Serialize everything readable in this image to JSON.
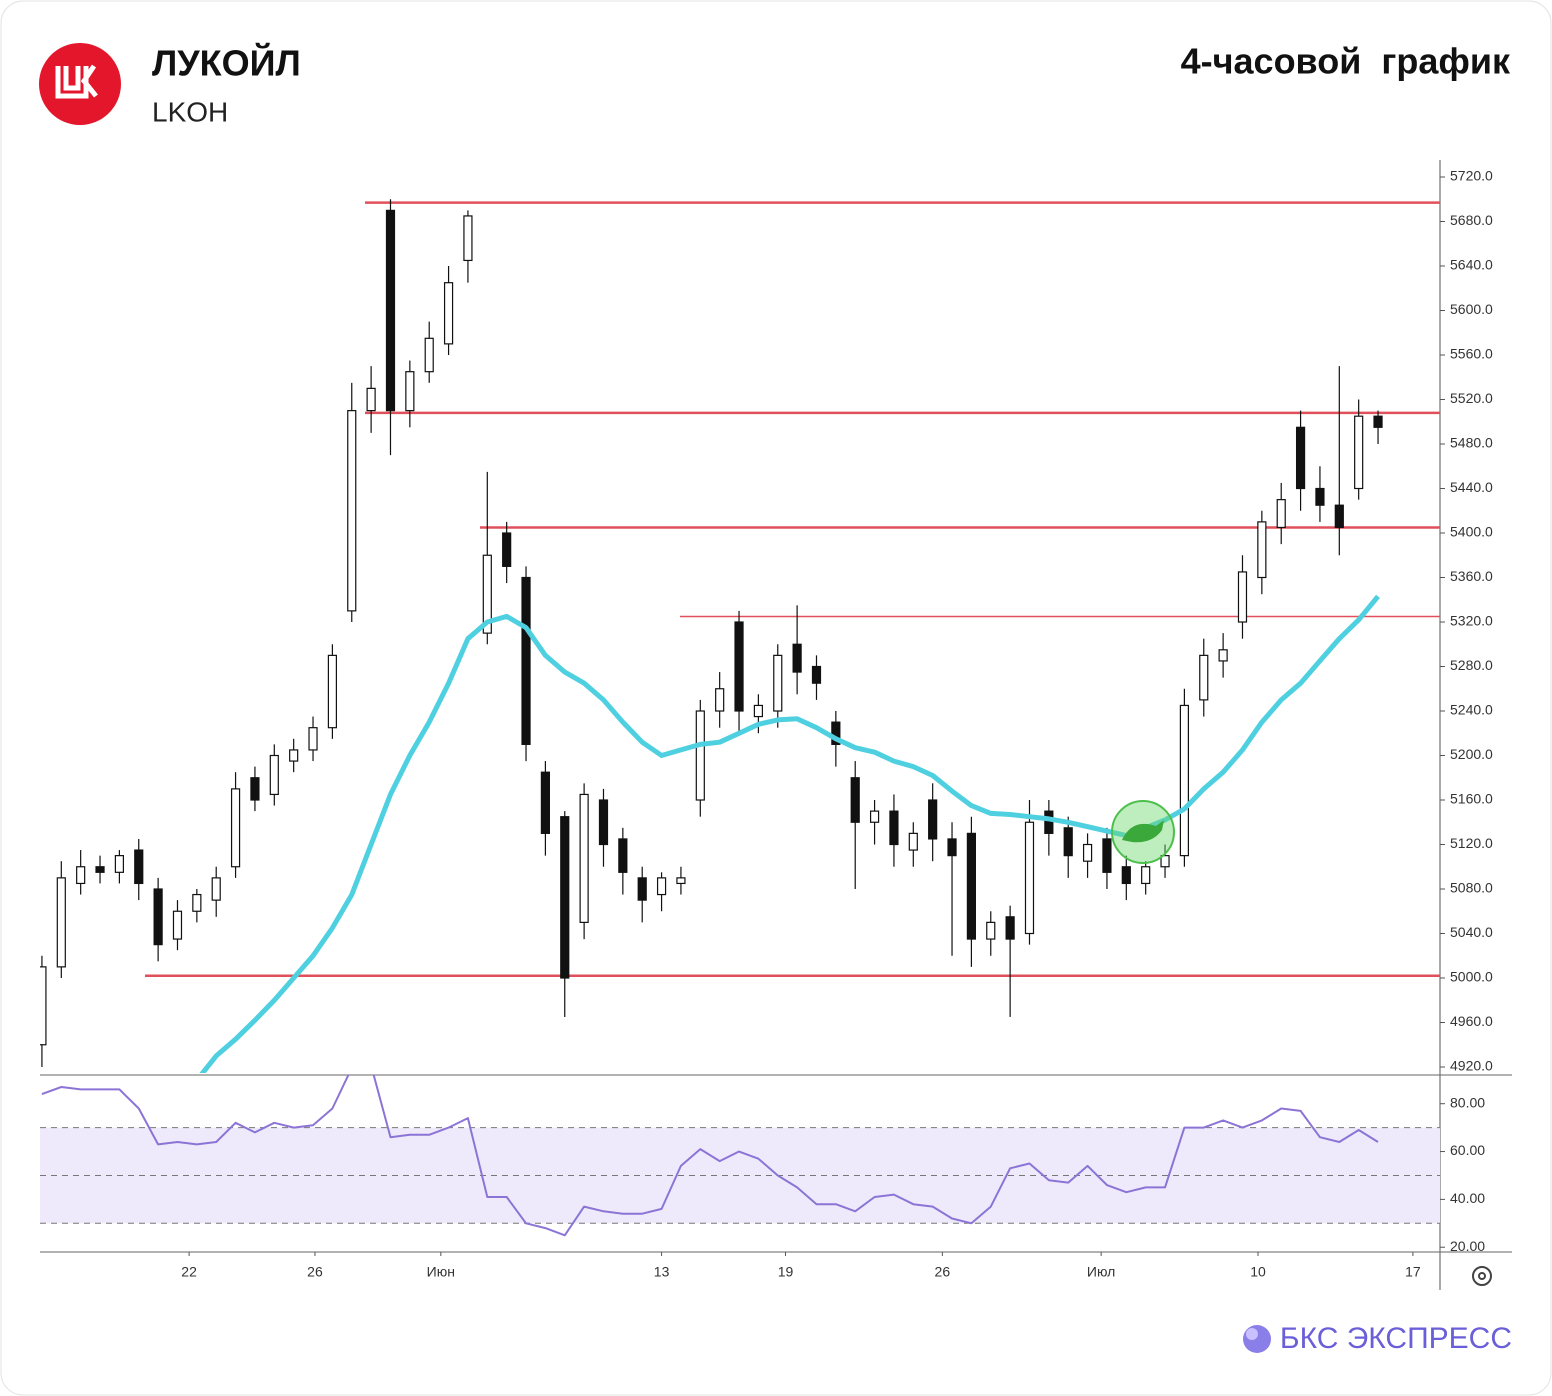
{
  "header": {
    "title": "ЛУКОЙЛ",
    "ticker": "LKOH",
    "timeframe": "4-часовой  график"
  },
  "footer": {
    "brand": "БКС ЭКСПРЕСС"
  },
  "chart_data": {
    "type": "candlestick",
    "open": [
      4940,
      5010,
      5085,
      5100,
      5095,
      5115,
      5080,
      5035,
      5060,
      5070,
      5100,
      5180,
      5165,
      5195,
      5205,
      5225,
      5330,
      5510,
      5690,
      5510,
      5545,
      5570,
      5645,
      5310,
      5400,
      5360,
      5185,
      5145,
      5050,
      5160,
      5125,
      5090,
      5075,
      5085,
      5160,
      5240,
      5320,
      5235,
      5240,
      5300,
      5280,
      5230,
      5180,
      5140,
      5150,
      5115,
      5160,
      5125,
      5130,
      5035,
      5055,
      5040,
      5150,
      5135,
      5105,
      5125,
      5100,
      5085,
      5100,
      5110,
      5250,
      5285,
      5320,
      5360,
      5405,
      5495,
      5440,
      5425,
      5440,
      5505
    ],
    "high": [
      5020,
      5105,
      5115,
      5110,
      5115,
      5125,
      5090,
      5070,
      5080,
      5100,
      5185,
      5190,
      5210,
      5215,
      5235,
      5300,
      5535,
      5550,
      5700,
      5555,
      5590,
      5640,
      5690,
      5455,
      5410,
      5370,
      5195,
      5150,
      5175,
      5170,
      5135,
      5100,
      5095,
      5100,
      5250,
      5275,
      5330,
      5255,
      5300,
      5335,
      5290,
      5240,
      5195,
      5160,
      5165,
      5140,
      5175,
      5140,
      5145,
      5060,
      5065,
      5160,
      5160,
      5145,
      5130,
      5135,
      5110,
      5105,
      5120,
      5260,
      5305,
      5310,
      5380,
      5420,
      5445,
      5510,
      5460,
      5550,
      5520,
      5510
    ],
    "low": [
      4920,
      5000,
      5075,
      5085,
      5085,
      5070,
      5015,
      5025,
      5050,
      5055,
      5090,
      5150,
      5155,
      5185,
      5195,
      5215,
      5320,
      5490,
      5470,
      5495,
      5535,
      5560,
      5625,
      5300,
      5355,
      5195,
      5110,
      4965,
      5035,
      5100,
      5075,
      5050,
      5060,
      5075,
      5145,
      5225,
      5220,
      5220,
      5225,
      5255,
      5250,
      5190,
      5080,
      5120,
      5100,
      5100,
      5105,
      5020,
      5010,
      5020,
      4965,
      5030,
      5110,
      5090,
      5090,
      5080,
      5070,
      5075,
      5090,
      5100,
      5235,
      5270,
      5305,
      5345,
      5390,
      5420,
      5410,
      5380,
      5430,
      5480
    ],
    "close": [
      5010,
      5090,
      5100,
      5095,
      5110,
      5085,
      5030,
      5060,
      5075,
      5090,
      5170,
      5160,
      5200,
      5205,
      5225,
      5290,
      5510,
      5530,
      5510,
      5545,
      5575,
      5625,
      5685,
      5380,
      5370,
      5210,
      5130,
      5000,
      5165,
      5120,
      5095,
      5070,
      5090,
      5090,
      5240,
      5260,
      5240,
      5245,
      5290,
      5275,
      5265,
      5210,
      5140,
      5150,
      5120,
      5130,
      5125,
      5110,
      5035,
      5050,
      5035,
      5140,
      5130,
      5110,
      5120,
      5095,
      5085,
      5100,
      5110,
      5245,
      5290,
      5295,
      5365,
      5410,
      5430,
      5440,
      5425,
      5405,
      5505,
      5495
    ],
    "ma": [
      null,
      null,
      null,
      null,
      null,
      null,
      null,
      null,
      4908,
      4930,
      4945,
      4962,
      4980,
      5000,
      5020,
      5045,
      5075,
      5120,
      5165,
      5200,
      5230,
      5265,
      5305,
      5320,
      5325,
      5315,
      5290,
      5275,
      5265,
      5250,
      5230,
      5212,
      5200,
      5205,
      5210,
      5212,
      5220,
      5228,
      5232,
      5233,
      5225,
      5215,
      5207,
      5203,
      5195,
      5190,
      5182,
      5168,
      5155,
      5148,
      5147,
      5145,
      5143,
      5140,
      5136,
      5132,
      5128,
      5135,
      5142,
      5152,
      5170,
      5185,
      5205,
      5230,
      5250,
      5265,
      5285,
      5305,
      5322,
      5343
    ],
    "ma_color": "#4fd0e0",
    "rsi": [
      84,
      87,
      86,
      86,
      86,
      78,
      63,
      64,
      63,
      64,
      72,
      68,
      72,
      70,
      71,
      78,
      95,
      96,
      66,
      67,
      67,
      70,
      74,
      41,
      41,
      30,
      28,
      25,
      37,
      35,
      34,
      34,
      36,
      54,
      61,
      56,
      60,
      57,
      50,
      45,
      38,
      38,
      35,
      41,
      42,
      38,
      37,
      32,
      30,
      37,
      53,
      55,
      48,
      47,
      54,
      46,
      43,
      45,
      45,
      70,
      70,
      73,
      70,
      73,
      78,
      77,
      66,
      64,
      69,
      64
    ],
    "rsi_color": "#8c74d6",
    "levels": [
      5697,
      5508,
      5405,
      5325,
      5002
    ],
    "level_color": "#e0505a",
    "xlim": [
      -0.1,
      72.2
    ],
    "xticks": [
      {
        "value": 7.6,
        "label": "22"
      },
      {
        "value": 14.1,
        "label": "26"
      },
      {
        "value": 20.6,
        "label": "Июн"
      },
      {
        "value": 32,
        "label": "13"
      },
      {
        "value": 38.4,
        "label": "19"
      },
      {
        "value": 46.5,
        "label": "26"
      },
      {
        "value": 54.7,
        "label": "Июл"
      },
      {
        "value": 62.8,
        "label": "10"
      },
      {
        "value": 70.8,
        "label": "17"
      }
    ],
    "ylim": [
      4920,
      5720
    ],
    "yticks": [
      {
        "value": 5720,
        "label": "5720.0"
      },
      {
        "value": 5680,
        "label": "5680.0"
      },
      {
        "value": 5640,
        "label": "5640.0"
      },
      {
        "value": 5600,
        "label": "5600.0"
      },
      {
        "value": 5560,
        "label": "5560.0"
      },
      {
        "value": 5520,
        "label": "5520.0"
      },
      {
        "value": 5480,
        "label": "5480.0"
      },
      {
        "value": 5440,
        "label": "5440.0"
      },
      {
        "value": 5400,
        "label": "5400.0"
      },
      {
        "value": 5360,
        "label": "5360.0"
      },
      {
        "value": 5320,
        "label": "5320.0"
      },
      {
        "value": 5280,
        "label": "5280.0"
      },
      {
        "value": 5240,
        "label": "5240.0"
      },
      {
        "value": 5200,
        "label": "5200.0"
      },
      {
        "value": 5160,
        "label": "5160.0"
      },
      {
        "value": 5120,
        "label": "5120.0"
      },
      {
        "value": 5080,
        "label": "5080.0"
      },
      {
        "value": 5040,
        "label": "5040.0"
      },
      {
        "value": 5000,
        "label": "5000.0"
      },
      {
        "value": 4960,
        "label": "4960.0"
      },
      {
        "value": 4920,
        "label": "4920.0"
      }
    ],
    "y2lim": [
      18,
      92
    ],
    "y2ticks": [
      {
        "value": 80,
        "label": "80.00"
      },
      {
        "value": 60,
        "label": "60.00"
      },
      {
        "value": 40,
        "label": "40.00"
      },
      {
        "value": 20,
        "label": "20.00"
      }
    ],
    "rsi_band": [
      30,
      70
    ],
    "rsi_mid": 50
  }
}
